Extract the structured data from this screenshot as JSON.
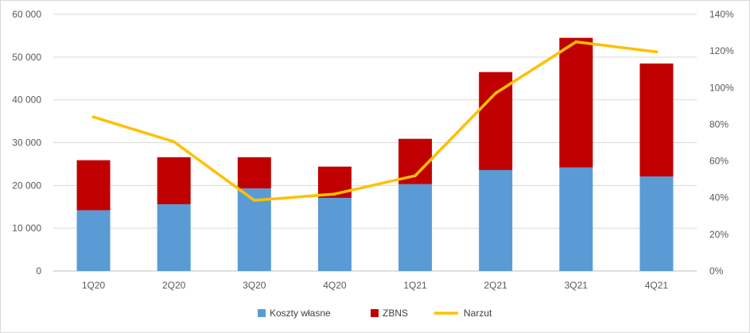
{
  "chart_data": {
    "type": "bar",
    "stacked": true,
    "categories": [
      "1Q20",
      "2Q20",
      "3Q20",
      "4Q20",
      "1Q21",
      "2Q21",
      "3Q21",
      "4Q21"
    ],
    "series": [
      {
        "name": "Koszty własne",
        "kind": "bar",
        "axis": "left",
        "color": "#5B9BD5",
        "values": [
          14200,
          15600,
          19300,
          17100,
          20300,
          23600,
          24200,
          22100
        ]
      },
      {
        "name": "ZBNS",
        "kind": "bar",
        "axis": "left",
        "color": "#C00000",
        "values": [
          11700,
          11000,
          7300,
          7300,
          10600,
          22900,
          30300,
          26400
        ]
      },
      {
        "name": "Narzut",
        "kind": "line",
        "axis": "right",
        "color": "#FFC000",
        "values": [
          84,
          70.5,
          38.5,
          42,
          52,
          97,
          125,
          119.5
        ]
      }
    ],
    "y_left": {
      "min": 0,
      "max": 60000,
      "step": 10000,
      "tick_labels": [
        "0",
        "10 000",
        "20 000",
        "30 000",
        "40 000",
        "50 000",
        "60 000"
      ]
    },
    "y_right": {
      "min": 0,
      "max": 140,
      "step": 20,
      "tick_labels": [
        "0%",
        "20%",
        "40%",
        "60%",
        "80%",
        "100%",
        "120%",
        "140%"
      ]
    },
    "grid": true,
    "legend_position": "bottom",
    "legend": [
      "Koszty własne",
      "ZBNS",
      "Narzut"
    ],
    "title": "",
    "xlabel": "",
    "ylabel": ""
  }
}
